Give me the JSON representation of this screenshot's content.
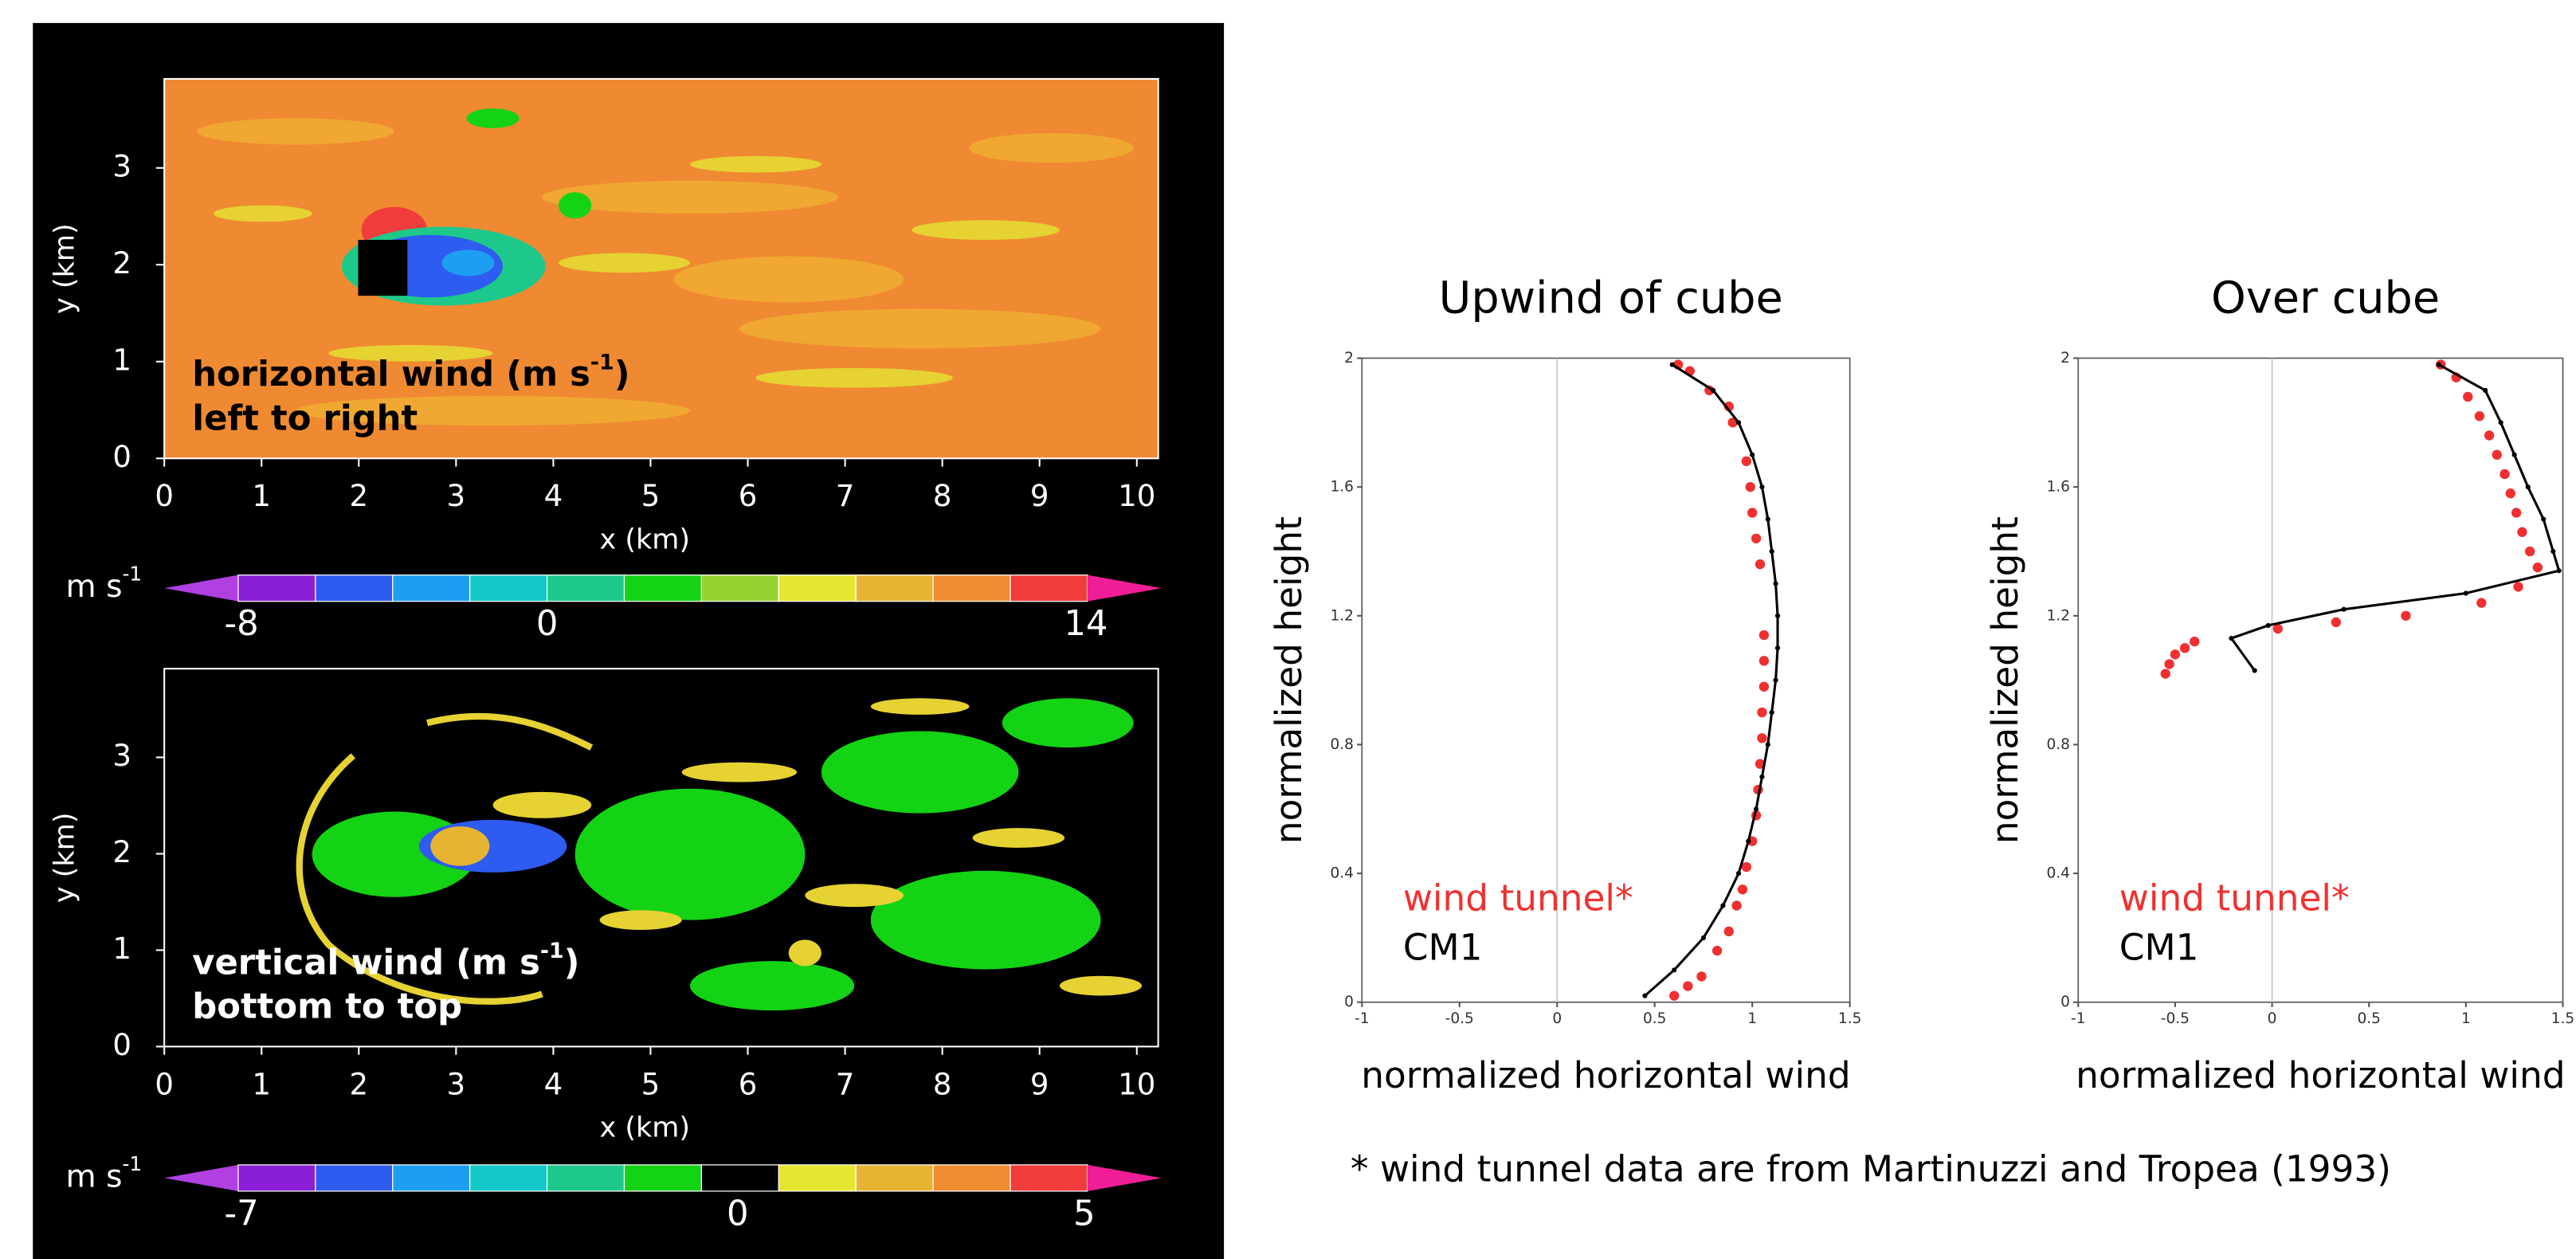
{
  "chart_data": [
    {
      "type": "heatmap",
      "xlabel": "x (km)",
      "ylabel": "y (km)",
      "xlim": [
        0,
        10.22
      ],
      "ylim": [
        0,
        3.92
      ],
      "xticks": [
        0,
        1,
        2,
        3,
        4,
        5,
        6,
        7,
        8,
        9,
        10
      ],
      "yticks": [
        0,
        1,
        2,
        3
      ],
      "annotation": [
        "horizontal wind (m s",
        "-1",
        ")",
        "left to right"
      ],
      "annotation_color": "#000000",
      "background": "#f08a32",
      "colorbar": {
        "unit": "m s",
        "unit_exp": "-1",
        "labels": [
          -8,
          0,
          14
        ],
        "colors": [
          "#b040e0",
          "#8a1fd6",
          "#2e5bf0",
          "#1e9ef0",
          "#14c8c8",
          "#1ec88a",
          "#14d214",
          "#96d232",
          "#e6e632",
          "#e6b432",
          "#f08c32",
          "#f03c3c",
          "#f01e96"
        ]
      }
    },
    {
      "type": "heatmap",
      "xlabel": "x (km)",
      "ylabel": "y (km)",
      "xlim": [
        0,
        10.22
      ],
      "ylim": [
        0,
        3.92
      ],
      "xticks": [
        0,
        1,
        2,
        3,
        4,
        5,
        6,
        7,
        8,
        9,
        10
      ],
      "yticks": [
        0,
        1,
        2,
        3
      ],
      "annotation": [
        "vertical wind (m s",
        "-1",
        ")",
        "bottom to top"
      ],
      "annotation_color": "#ffffff",
      "background": "#000000",
      "colorbar": {
        "unit": "m s",
        "unit_exp": "-1",
        "labels": [
          -7,
          0,
          5
        ],
        "colors": [
          "#b040e0",
          "#8a1fd6",
          "#2e5bf0",
          "#1e9ef0",
          "#14c8c8",
          "#1ec88a",
          "#14d214",
          "#000000",
          "#e6e632",
          "#e6b432",
          "#f08c32",
          "#f03c3c",
          "#f01e96"
        ]
      }
    },
    {
      "type": "line",
      "title": "Upwind of cube",
      "xlabel": "normalized horizontal wind",
      "ylabel": "normalized height",
      "xlim": [
        -1,
        1.5
      ],
      "ylim": [
        0,
        2
      ],
      "xticks": [
        -1,
        -0.5,
        0,
        0.5,
        1,
        1.5
      ],
      "yticks": [
        0,
        0.4,
        0.8,
        1.2,
        1.6,
        2
      ],
      "zero_line": true,
      "legend": "lower left",
      "series": [
        {
          "name": "wind tunnel*",
          "color": "#f03030",
          "mode": "markers",
          "x": [
            0.6,
            0.67,
            0.74,
            0.82,
            0.88,
            0.92,
            0.95,
            0.97,
            1.0,
            1.02,
            1.03,
            1.04,
            1.05,
            1.05,
            1.06,
            1.06,
            1.06,
            1.04,
            1.02,
            1.0,
            0.99,
            0.97,
            0.9,
            0.88,
            0.78,
            0.68,
            0.62
          ],
          "values": [
            0.02,
            0.05,
            0.08,
            0.16,
            0.22,
            0.3,
            0.35,
            0.42,
            0.5,
            0.58,
            0.66,
            0.74,
            0.82,
            0.9,
            0.98,
            1.06,
            1.14,
            1.36,
            1.44,
            1.52,
            1.6,
            1.68,
            1.8,
            1.85,
            1.9,
            1.96,
            1.98
          ]
        },
        {
          "name": "CM1",
          "color": "#000000",
          "mode": "line",
          "x": [
            0.45,
            0.6,
            0.75,
            0.85,
            0.93,
            0.98,
            1.02,
            1.05,
            1.08,
            1.1,
            1.12,
            1.13,
            1.13,
            1.12,
            1.1,
            1.08,
            1.05,
            1.0,
            0.93,
            0.8,
            0.59
          ],
          "values": [
            0.02,
            0.1,
            0.2,
            0.3,
            0.4,
            0.5,
            0.6,
            0.7,
            0.8,
            0.9,
            1.0,
            1.1,
            1.2,
            1.3,
            1.4,
            1.5,
            1.6,
            1.7,
            1.8,
            1.9,
            1.98
          ]
        }
      ]
    },
    {
      "type": "line",
      "title": "Over cube",
      "xlabel": "normalized horizontal wind",
      "ylabel": "normalized height",
      "xlim": [
        -1,
        1.5
      ],
      "ylim": [
        0,
        2
      ],
      "xticks": [
        -1,
        -0.5,
        0,
        0.5,
        1,
        1.5
      ],
      "yticks": [
        0,
        0.4,
        0.8,
        1.2,
        1.6,
        2
      ],
      "zero_line": true,
      "legend": "lower left",
      "series": [
        {
          "name": "wind tunnel*",
          "color": "#f03030",
          "mode": "markers",
          "x": [
            -0.55,
            -0.53,
            -0.5,
            -0.45,
            -0.4,
            0.03,
            0.33,
            0.69,
            1.08,
            1.27,
            1.37,
            1.33,
            1.29,
            1.26,
            1.23,
            1.2,
            1.16,
            1.12,
            1.07,
            1.01,
            0.95,
            0.87
          ],
          "values": [
            1.02,
            1.05,
            1.08,
            1.1,
            1.12,
            1.16,
            1.18,
            1.2,
            1.24,
            1.29,
            1.35,
            1.4,
            1.46,
            1.52,
            1.58,
            1.64,
            1.7,
            1.76,
            1.82,
            1.88,
            1.94,
            1.98
          ]
        },
        {
          "name": "CM1",
          "color": "#000000",
          "mode": "line",
          "x": [
            -0.09,
            -0.21,
            -0.02,
            0.37,
            1.0,
            1.48,
            1.45,
            1.4,
            1.32,
            1.25,
            1.18,
            1.1,
            0.86
          ],
          "values": [
            1.03,
            1.13,
            1.17,
            1.22,
            1.27,
            1.34,
            1.4,
            1.5,
            1.6,
            1.7,
            1.8,
            1.9,
            1.98
          ]
        }
      ]
    }
  ],
  "footnote": "* wind tunnel data are from Martinuzzi and Tropea (1993)"
}
